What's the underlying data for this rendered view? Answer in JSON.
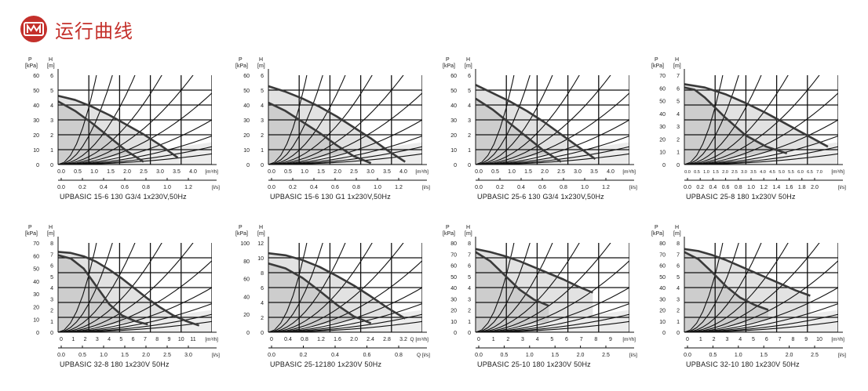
{
  "header": {
    "title": "运行曲线",
    "logo_color": "#c4302b"
  },
  "chart_data": [
    {
      "type": "line",
      "title": "UPBASIC 15-6 130 G3/4 1x230V,50Hz",
      "kpa_ticks": [
        "60",
        "50",
        "40",
        "30",
        "20",
        "10",
        "0"
      ],
      "m_ticks": [
        "6",
        "5",
        "4",
        "3",
        "2",
        "1",
        "0"
      ],
      "q_m3h_ticks": [
        "0.0",
        "0.5",
        "1.0",
        "1.5",
        "2.0",
        "2.5",
        "3.0",
        "3.5",
        "4.0"
      ],
      "q_m3h_unit": "[m³/h]",
      "q_ls_ticks": [
        "0.0",
        "0.2",
        "0.4",
        "0.6",
        "0.8",
        "1.0",
        "1.2"
      ],
      "q_ls_unit": "[l/s]",
      "xlim": [
        0,
        4.5
      ],
      "ylim": [
        0,
        6.5
      ],
      "series": [
        {
          "name": "III",
          "x": [
            0,
            0.5,
            1,
            1.5,
            2,
            2.5,
            3,
            3.5
          ],
          "y": [
            5,
            4.7,
            4.2,
            3.6,
            2.9,
            2.2,
            1.4,
            0.5
          ]
        },
        {
          "name": "II",
          "x": [
            0,
            0.5,
            1,
            1.5,
            2,
            2.5
          ],
          "y": [
            4.6,
            3.9,
            3,
            2,
            1,
            0.2
          ]
        }
      ]
    },
    {
      "type": "line",
      "title": "UPBASIC 15-6 130 G1 1x230V,50Hz",
      "kpa_ticks": [
        "60",
        "50",
        "40",
        "30",
        "20",
        "10",
        "0"
      ],
      "m_ticks": [
        "6",
        "5",
        "4",
        "3",
        "2",
        "1",
        "0"
      ],
      "q_m3h_ticks": [
        "0.0",
        "0.5",
        "1.0",
        "1.5",
        "2.0",
        "2.5",
        "3.0",
        "3.5",
        "4.0"
      ],
      "q_m3h_unit": "[m³/h]",
      "q_ls_ticks": [
        "0.0",
        "0.2",
        "0.4",
        "0.6",
        "0.8",
        "1.0",
        "1.2"
      ],
      "q_ls_unit": "[l/s]",
      "xlim": [
        0,
        4.5
      ],
      "ylim": [
        0,
        6.5
      ],
      "series": [
        {
          "name": "III",
          "x": [
            0,
            0.5,
            1,
            1.5,
            2,
            2.5,
            3,
            3.5,
            4
          ],
          "y": [
            5.7,
            5.3,
            4.8,
            4.2,
            3.5,
            2.7,
            1.9,
            1,
            0.2
          ]
        },
        {
          "name": "II",
          "x": [
            0,
            0.5,
            1,
            1.5,
            2,
            2.5,
            3
          ],
          "y": [
            4.5,
            3.9,
            3.1,
            2.3,
            1.4,
            0.6,
            0.1
          ]
        }
      ]
    },
    {
      "type": "line",
      "title": "UPBASIC 25-6 130 G3/4 1x230V,50Hz",
      "kpa_ticks": [
        "60",
        "50",
        "40",
        "30",
        "20",
        "10",
        "0"
      ],
      "m_ticks": [
        "6",
        "5",
        "4",
        "3",
        "2",
        "1",
        "0"
      ],
      "q_m3h_ticks": [
        "0.0",
        "0.5",
        "1.0",
        "1.5",
        "2.0",
        "2.5",
        "3.0",
        "3.5",
        "4.0"
      ],
      "q_m3h_unit": "[m³/h]",
      "q_ls_ticks": [
        "0.0",
        "0.2",
        "0.4",
        "0.6",
        "0.8",
        "1.0",
        "1.2"
      ],
      "q_ls_unit": "[l/s]",
      "xlim": [
        0,
        4.5
      ],
      "ylim": [
        0,
        6.5
      ],
      "series": [
        {
          "name": "III",
          "x": [
            0,
            0.5,
            1,
            1.5,
            2,
            2.5,
            3,
            3.5
          ],
          "y": [
            5.8,
            5.2,
            4.6,
            3.9,
            3.1,
            2.2,
            1.3,
            0.4
          ]
        },
        {
          "name": "II",
          "x": [
            0,
            0.5,
            1,
            1.5,
            2,
            2.5
          ],
          "y": [
            4.8,
            4,
            3,
            2,
            1,
            0.2
          ]
        }
      ]
    },
    {
      "type": "line",
      "title": "UPBASIC 25-8 180 1x230V 50Hz",
      "kpa_ticks": [
        "70",
        "60",
        "50",
        "40",
        "30",
        "20",
        "10",
        "0"
      ],
      "m_ticks": [
        "7",
        "6",
        "5",
        "4",
        "3",
        "2",
        "1",
        "0"
      ],
      "q_m3h_ticks": [
        "0.0",
        "0.5",
        "1.0",
        "1.5",
        "2.0",
        "2.5",
        "3.0",
        "3.5",
        "4.0",
        "4.5",
        "5.0",
        "5.5",
        "6.0",
        "6.5",
        "7.0"
      ],
      "q_m3h_unit": "[m³/h]",
      "q_ls_ticks": [
        "0.0",
        "0.2",
        "0.4",
        "0.6",
        "0.8",
        "1.0",
        "1.2",
        "1.4",
        "1.6",
        "1.8",
        "2.0"
      ],
      "q_ls_unit": "[l/s]",
      "xlim": [
        0,
        7.5
      ],
      "ylim": [
        0,
        8
      ],
      "series": [
        {
          "name": "III",
          "x": [
            0,
            1,
            2,
            3,
            4,
            5,
            6,
            7
          ],
          "y": [
            7.2,
            6.9,
            6.3,
            5.5,
            4.6,
            3.6,
            2.6,
            1.6
          ]
        },
        {
          "name": "II",
          "x": [
            0,
            0.5,
            1,
            2,
            3,
            4,
            5
          ],
          "y": [
            6.9,
            6.7,
            6,
            4.2,
            2.6,
            1.6,
            1
          ]
        }
      ]
    },
    {
      "type": "line",
      "title": "UPBASIC 32-8 180 1x230V 50Hz",
      "kpa_ticks": [
        "70",
        "60",
        "50",
        "40",
        "30",
        "20",
        "10",
        "0"
      ],
      "m_ticks": [
        "8",
        "7",
        "6",
        "5",
        "4",
        "3",
        "2",
        "1",
        "0"
      ],
      "q_m3h_ticks": [
        "0",
        "1",
        "2",
        "3",
        "4",
        "5",
        "6",
        "7",
        "8",
        "9",
        "10",
        "11"
      ],
      "q_m3h_unit": "[m³/h]",
      "q_ls_ticks": [
        "0.0",
        "0.5",
        "1.0",
        "1.5",
        "2.0",
        "2.5",
        "3.0"
      ],
      "q_ls_unit": "[l/s]",
      "xlim": [
        0,
        12
      ],
      "ylim": [
        0,
        8
      ],
      "series": [
        {
          "name": "III",
          "x": [
            0,
            1,
            2,
            3,
            4,
            5,
            6,
            7,
            8,
            9,
            10,
            11
          ],
          "y": [
            7.2,
            7.1,
            6.8,
            6.3,
            5.6,
            4.8,
            3.9,
            3,
            2.2,
            1.5,
            1,
            0.6
          ]
        },
        {
          "name": "II",
          "x": [
            0,
            1,
            2,
            3,
            4,
            5,
            6,
            7
          ],
          "y": [
            6.9,
            6.6,
            5.7,
            4.1,
            2.5,
            1.5,
            1,
            0.7
          ]
        }
      ]
    },
    {
      "type": "line",
      "title": "UPBASIC 25-12180 1x230V 50Hz",
      "kpa_ticks": [
        "100",
        "80",
        "60",
        "40",
        "20",
        "0"
      ],
      "m_ticks": [
        "12",
        "10",
        "8",
        "6",
        "4",
        "2",
        "0"
      ],
      "q_m3h_ticks": [
        "0",
        "0.4",
        "0.8",
        "1.2",
        "1.6",
        "2.0",
        "2.4",
        "2.8",
        "3.2"
      ],
      "q_m3h_unit": "Q [m³/h]",
      "q_ls_ticks": [
        "0.0",
        "0.2",
        "0.4",
        "0.6",
        "0.8"
      ],
      "q_ls_unit": "Q [l/s]",
      "xlim": [
        0,
        3.6
      ],
      "ylim": [
        0,
        13
      ],
      "series": [
        {
          "name": "III",
          "x": [
            0,
            0.4,
            0.8,
            1.2,
            1.6,
            2,
            2.4,
            2.8,
            3.2
          ],
          "y": [
            11.5,
            11.2,
            10.5,
            9.5,
            8.2,
            6.8,
            5.2,
            3.5,
            2
          ]
        },
        {
          "name": "II",
          "x": [
            0,
            0.4,
            0.8,
            1.2,
            1.6,
            2,
            2.4
          ],
          "y": [
            10,
            9.3,
            7.9,
            6,
            4,
            2.3,
            1.3
          ]
        }
      ]
    },
    {
      "type": "line",
      "title": "UPBASIC 25-10 180 1x230V 50Hz",
      "kpa_ticks": [
        "80",
        "70",
        "60",
        "50",
        "40",
        "30",
        "20",
        "10",
        "0"
      ],
      "m_ticks": [
        "8",
        "7",
        "6",
        "5",
        "4",
        "3",
        "2",
        "1",
        "0"
      ],
      "q_m3h_ticks": [
        "0",
        "1",
        "2",
        "3",
        "4",
        "5",
        "6",
        "7",
        "8",
        "9"
      ],
      "q_m3h_unit": "[m³/h]",
      "q_ls_ticks": [
        "0.0",
        "0.5",
        "1.0",
        "1.5",
        "2.0",
        "2.5"
      ],
      "q_ls_unit": "[l/s]",
      "xlim": [
        0,
        10.5
      ],
      "ylim": [
        0,
        8.8
      ],
      "series": [
        {
          "name": "III",
          "x": [
            0,
            1,
            2,
            3,
            4,
            5,
            6,
            7,
            8
          ],
          "y": [
            8.2,
            7.9,
            7.5,
            7,
            6.4,
            5.8,
            5.2,
            4.5,
            3.9
          ]
        },
        {
          "name": "II",
          "x": [
            0,
            1,
            2,
            3,
            4,
            5
          ],
          "y": [
            7.9,
            7,
            5.6,
            4.2,
            3.2,
            2.6
          ]
        }
      ]
    },
    {
      "type": "line",
      "title": "UPBASIC 32-10 180 1x230V 50Hz",
      "kpa_ticks": [
        "80",
        "70",
        "60",
        "50",
        "40",
        "30",
        "20",
        "10",
        "0"
      ],
      "m_ticks": [
        "8",
        "7",
        "6",
        "5",
        "4",
        "3",
        "2",
        "1",
        "0"
      ],
      "q_m3h_ticks": [
        "0",
        "1",
        "2",
        "3",
        "4",
        "5",
        "6",
        "7",
        "8",
        "9",
        "10"
      ],
      "q_m3h_unit": "[m³/h]",
      "q_ls_ticks": [
        "0.0",
        "0.5",
        "1.0",
        "1.5",
        "2.0",
        "2.5"
      ],
      "q_ls_unit": "[l/s]",
      "xlim": [
        0,
        11
      ],
      "ylim": [
        0,
        8.8
      ],
      "series": [
        {
          "name": "III",
          "x": [
            0,
            1,
            2,
            3,
            4,
            5,
            6,
            7,
            8,
            9
          ],
          "y": [
            8.2,
            8,
            7.6,
            7.1,
            6.5,
            5.9,
            5.3,
            4.7,
            4.1,
            3.6
          ]
        },
        {
          "name": "II",
          "x": [
            0,
            1,
            2,
            3,
            4,
            5,
            6
          ],
          "y": [
            7.9,
            7.2,
            5.9,
            4.5,
            3.4,
            2.7,
            2.2
          ]
        }
      ]
    }
  ]
}
